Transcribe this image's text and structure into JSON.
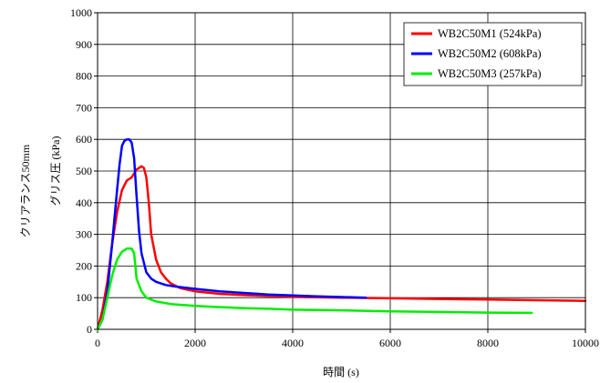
{
  "chart_data": {
    "type": "line",
    "xlabel": "時間 (s)",
    "ylabel": "グリス圧 (kPa)",
    "side_label": "クリアランス50mm",
    "xlim": [
      0,
      10000
    ],
    "ylim": [
      0,
      1000
    ],
    "xticks": [
      "0",
      "2000",
      "4000",
      "6000",
      "8000",
      "10000"
    ],
    "yticks": [
      "0",
      "100",
      "200",
      "300",
      "400",
      "500",
      "600",
      "700",
      "800",
      "900",
      "1000"
    ],
    "grid": true,
    "legend_position": "top-right",
    "series": [
      {
        "name": "WB2C50M1 (524kPa)",
        "color": "#ff0000",
        "x": [
          0,
          100,
          200,
          300,
          400,
          500,
          600,
          700,
          800,
          900,
          950,
          1000,
          1050,
          1100,
          1200,
          1300,
          1400,
          1500,
          1700,
          2000,
          2500,
          3000,
          4000,
          5000,
          6000,
          7000,
          8000,
          9000,
          10000
        ],
        "y": [
          0,
          60,
          150,
          270,
          370,
          440,
          470,
          480,
          505,
          515,
          510,
          480,
          400,
          300,
          220,
          180,
          160,
          145,
          130,
          120,
          112,
          108,
          103,
          100,
          98,
          96,
          94,
          92,
          90
        ]
      },
      {
        "name": "WB2C50M2 (608kPa)",
        "color": "#0000ff",
        "x": [
          0,
          100,
          200,
          300,
          400,
          450,
          500,
          550,
          600,
          650,
          700,
          750,
          800,
          850,
          900,
          1000,
          1100,
          1200,
          1400,
          1600,
          2000,
          2500,
          3000,
          3500,
          4000,
          4500,
          5000,
          5500
        ],
        "y": [
          0,
          30,
          120,
          270,
          440,
          520,
          580,
          595,
          600,
          600,
          590,
          540,
          420,
          310,
          240,
          180,
          160,
          150,
          140,
          135,
          128,
          120,
          115,
          110,
          107,
          104,
          102,
          100
        ]
      },
      {
        "name": "WB2C50M3 (257kPa)",
        "color": "#00ee00",
        "x": [
          0,
          100,
          200,
          300,
          400,
          500,
          600,
          700,
          750,
          800,
          900,
          1000,
          1200,
          1500,
          2000,
          2500,
          3000,
          3500,
          4000,
          5000,
          6000,
          7000,
          8000,
          8900
        ],
        "y": [
          0,
          30,
          100,
          170,
          220,
          245,
          255,
          255,
          240,
          160,
          120,
          100,
          88,
          80,
          74,
          70,
          67,
          65,
          62,
          60,
          57,
          55,
          53,
          52
        ]
      }
    ]
  }
}
